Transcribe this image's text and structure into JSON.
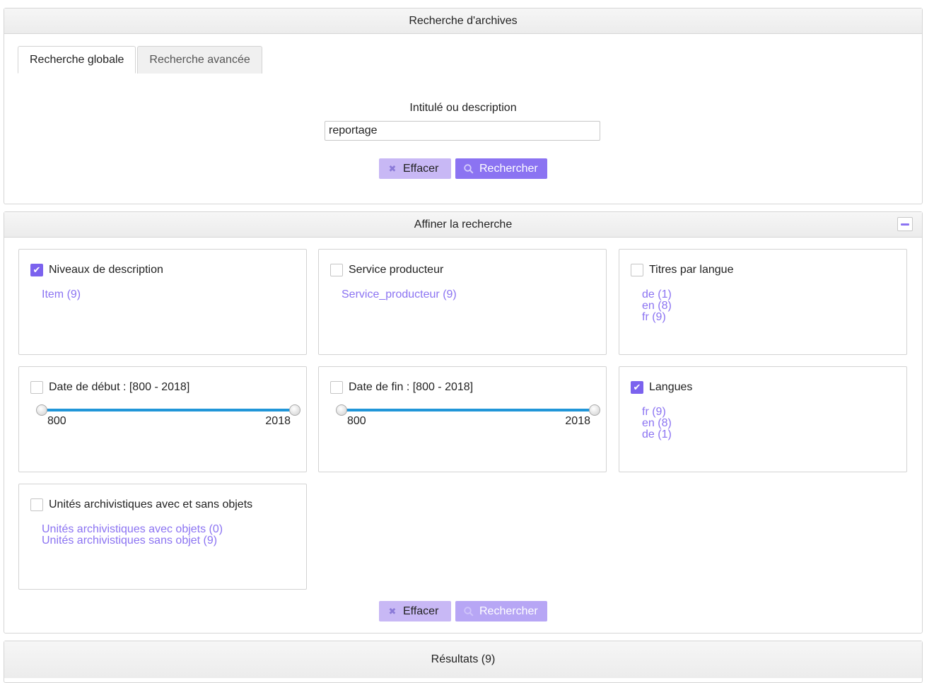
{
  "search_panel": {
    "title": "Recherche d'archives",
    "tabs": [
      {
        "label": "Recherche globale",
        "active": true
      },
      {
        "label": "Recherche avancée",
        "active": false
      }
    ],
    "field_label": "Intitulé ou description",
    "query_value": "reportage",
    "clear_label": "Effacer",
    "search_label": "Rechercher"
  },
  "refine_panel": {
    "title": "Affiner la recherche",
    "facets": {
      "niveaux": {
        "label": "Niveaux de description",
        "checked": true,
        "items": [
          "Item (9)"
        ]
      },
      "service": {
        "label": "Service producteur",
        "checked": false,
        "items": [
          "Service_producteur (9)"
        ]
      },
      "titres": {
        "label": "Titres par langue",
        "checked": false,
        "items": [
          "de (1)",
          "en (8)",
          "fr (9)"
        ]
      },
      "date_debut": {
        "label": "Date de début : [800 - 2018]",
        "checked": false,
        "min": "800",
        "max": "2018"
      },
      "date_fin": {
        "label": "Date de fin : [800 - 2018]",
        "checked": false,
        "min": "800",
        "max": "2018"
      },
      "langues": {
        "label": "Langues",
        "checked": true,
        "items": [
          "fr (9)",
          "en (8)",
          "de (1)"
        ]
      },
      "unites": {
        "label": "Unités archivistiques avec et sans objets",
        "checked": false,
        "items": [
          "Unités archivistiques avec objets (0)",
          "Unités archivistiques sans objet (9)"
        ]
      }
    },
    "clear_label": "Effacer",
    "search_label": "Rechercher"
  },
  "results_panel": {
    "title": "Résultats (9)"
  },
  "colors": {
    "accent": "#8b73f2",
    "accent_light": "#c8b8f5",
    "slider": "#2196d8"
  },
  "icons": {
    "clear": "x-icon",
    "search": "magnifier-icon",
    "check": "check-icon",
    "collapse": "minus-icon"
  }
}
